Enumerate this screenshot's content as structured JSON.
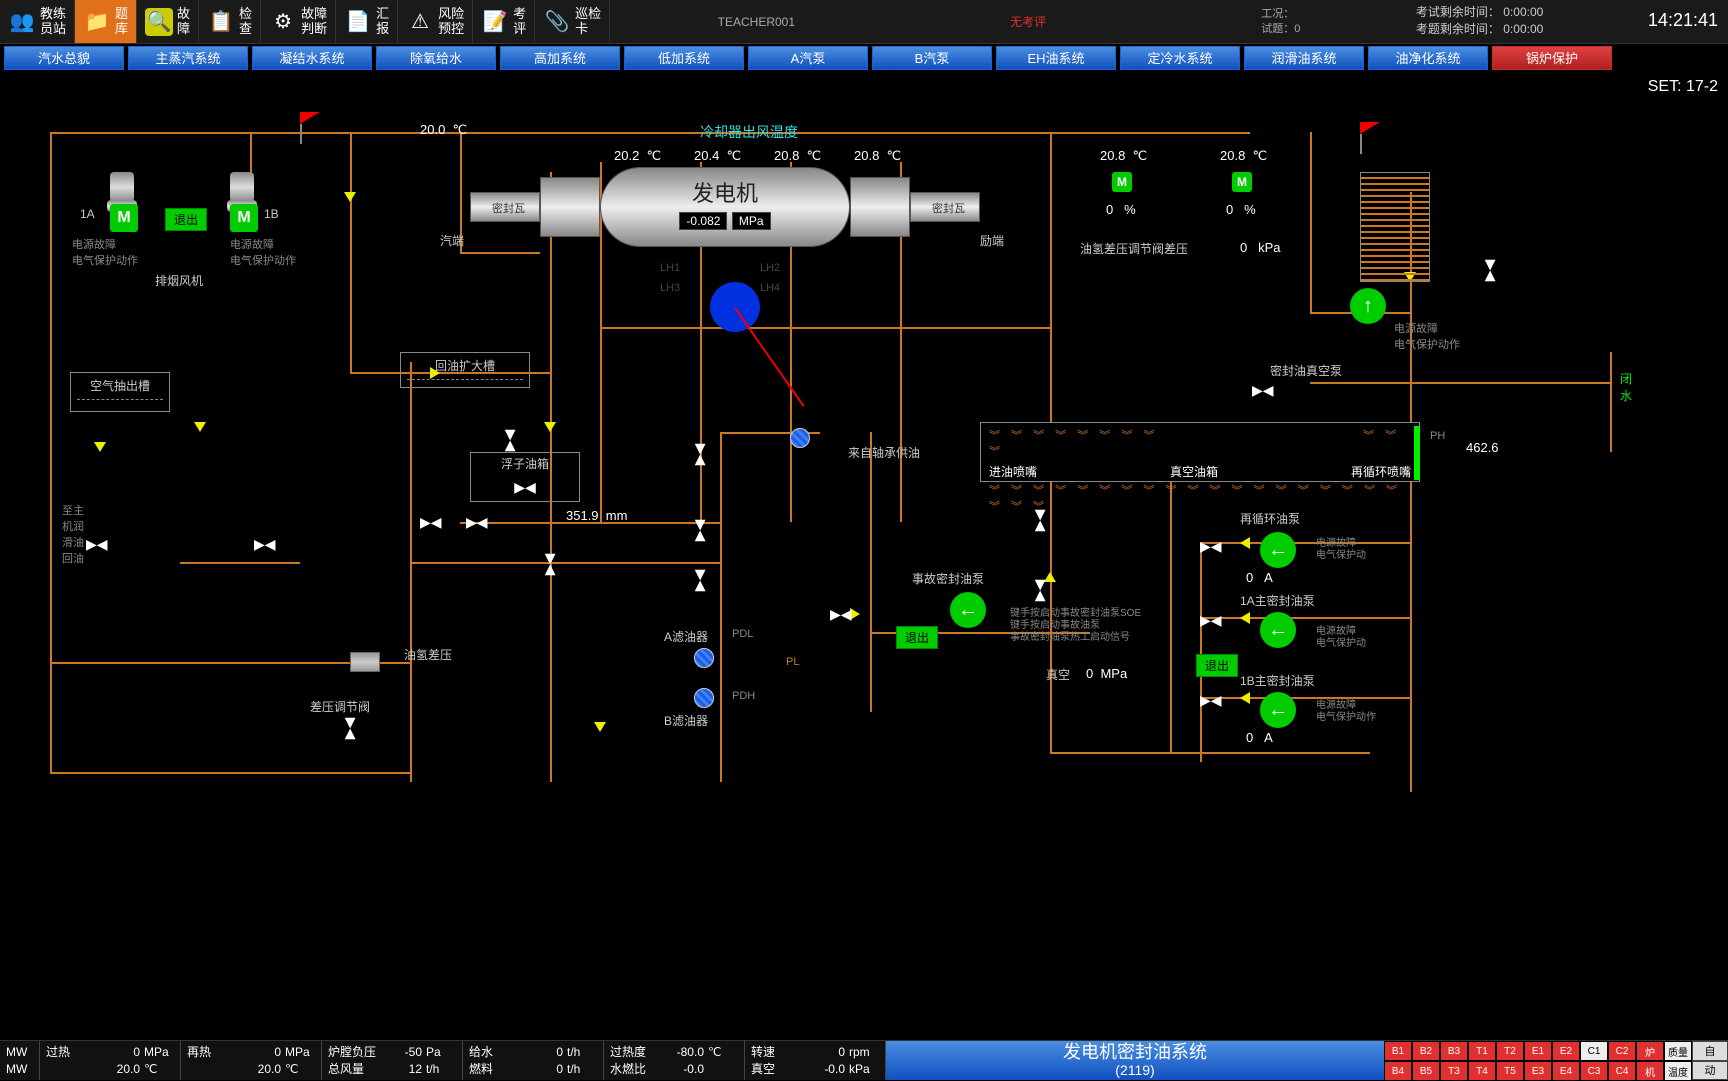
{
  "toolbar": {
    "btns": [
      {
        "icon": "👥",
        "l1": "教练",
        "l2": "员站"
      },
      {
        "icon": "📁",
        "l1": "题",
        "l2": "库",
        "active": true,
        "bg": "#e0701c"
      },
      {
        "icon": "🔍",
        "l1": "故",
        "l2": "障",
        "ibg": "#cc0"
      },
      {
        "icon": "📋",
        "l1": "检",
        "l2": "查"
      },
      {
        "icon": "⚙",
        "l1": "故障",
        "l2": "判断"
      },
      {
        "icon": "📄",
        "l1": "汇",
        "l2": "报"
      },
      {
        "icon": "⚠",
        "l1": "风险",
        "l2": "预控"
      },
      {
        "icon": "📝",
        "l1": "考",
        "l2": "评"
      },
      {
        "icon": "📎",
        "l1": "巡检",
        "l2": "卡"
      }
    ],
    "teacher": "TEACHER001",
    "info_eval": "无考评",
    "info_gk": "工况：",
    "info_st": "试题：0",
    "time_exam": "考试剩余时间：   0:00:00",
    "time_q": "考题剩余时间：   0:00:00",
    "clock": "14:21:41"
  },
  "systabs": [
    "汽水总貌",
    "主蒸汽系统",
    "凝结水系统",
    "除氧给水",
    "高加系统",
    "低加系统",
    "A汽泵",
    "B汽泵",
    "EH油系统",
    "定冷水系统",
    "润滑油系统",
    "油净化系统",
    "锅炉保护"
  ],
  "set_label": "SET: 17-2",
  "cooler": {
    "title": "冷却器出风温度",
    "t_left": "20.0",
    "t1": "20.2",
    "t2": "20.4",
    "t3": "20.8",
    "t4": "20.8",
    "unit": "℃"
  },
  "gen": {
    "title": "发电机",
    "val": "-0.082",
    "unit": "MPa",
    "seal_l": "密封瓦",
    "seal_r": "密封瓦",
    "end_l": "汽端",
    "end_r": "励端",
    "lh1": "LH1",
    "lh2": "LH2",
    "lh3": "LH3",
    "lh4": "LH4"
  },
  "right_temps": {
    "t1": "20.8",
    "t2": "20.8",
    "unit": "℃",
    "p1": "0",
    "p2": "0",
    "punit": "%"
  },
  "h2diff": {
    "label": "油氢差压调节阀差压",
    "val": "0",
    "unit": "kPa"
  },
  "fans": {
    "a": "1A",
    "b": "1B",
    "exit": "退出",
    "fault": "电源故障\n电气保护动作",
    "label": "排烟风机"
  },
  "air_tank": "空气抽出槽",
  "return_tank": "回油扩大槽",
  "float_tank": "浮子油箱",
  "float_val": "351.9",
  "float_unit": "mm",
  "bearing_supply": "来自轴承供油",
  "vac_pump": "密封油真空泵",
  "vac_pump_fault": "电源故障\n电气保护动作",
  "close_water": "闭\n水",
  "to_lube": "至主\n机润\n滑油\n回油",
  "diff_valve": "差压调节阀",
  "h2_diff_lbl": "油氢差压",
  "filter_a": "A滤油器",
  "filter_b": "B滤油器",
  "pdh": "PDH",
  "pdl": "PDL",
  "pl": "PL",
  "vac_tank": {
    "in": "进油喷嘴",
    "name": "真空油箱",
    "recirc": "再循环喷嘴",
    "ph": "PH",
    "level": "462.6"
  },
  "pumps": {
    "recirc": {
      "name": "再循环油泵",
      "val": "0",
      "unit": "A",
      "fault": "电源故障\n电气保护动"
    },
    "emerg": {
      "name": "事故密封油泵",
      "notes": "键手按启动事故密封油泵SOE\n键手按启动事故油泵\n事故密封油泵热工启动信号",
      "exit": "退出"
    },
    "p1a": {
      "name": "1A主密封油泵",
      "val": "0",
      "unit": "A",
      "fault": "电源故障\n电气保护动",
      "exit": "退出"
    },
    "p1b": {
      "name": "1B主密封油泵",
      "val": "0",
      "unit": "A",
      "fault": "电源故障\n电气保护动作"
    },
    "vac_val": "0",
    "vac_unit": "MPa",
    "vac_lbl": "真空"
  },
  "bottom": {
    "mw": "MW",
    "r1": [
      [
        "过热",
        "0",
        "MPa"
      ],
      [
        "再热",
        "0",
        "MPa"
      ],
      [
        "炉膛负压",
        "-50",
        "Pa"
      ],
      [
        "给水",
        "0",
        "t/h"
      ],
      [
        "过热度",
        "-80.0",
        "℃"
      ],
      [
        "转速",
        "0",
        "rpm"
      ]
    ],
    "r2": [
      [
        "",
        "20.0",
        "℃"
      ],
      [
        "",
        "20.0",
        "℃"
      ],
      [
        "总风量",
        "12",
        "t/h"
      ],
      [
        "燃料",
        "0",
        "t/h"
      ],
      [
        "水燃比",
        "-0.0",
        ""
      ],
      [
        "真空",
        "-0.0",
        "kPa"
      ]
    ],
    "title": "发电机密封油系统",
    "title2": "(2119)",
    "grid1": [
      "B1",
      "B2",
      "B3",
      "T1",
      "T2",
      "E1",
      "E2",
      "C1",
      "C2",
      "炉",
      "质量"
    ],
    "grid2": [
      "B4",
      "B5",
      "T3",
      "T4",
      "T5",
      "E3",
      "E4",
      "C3",
      "C4",
      "机",
      "温度"
    ],
    "side": [
      "自",
      "动"
    ]
  }
}
